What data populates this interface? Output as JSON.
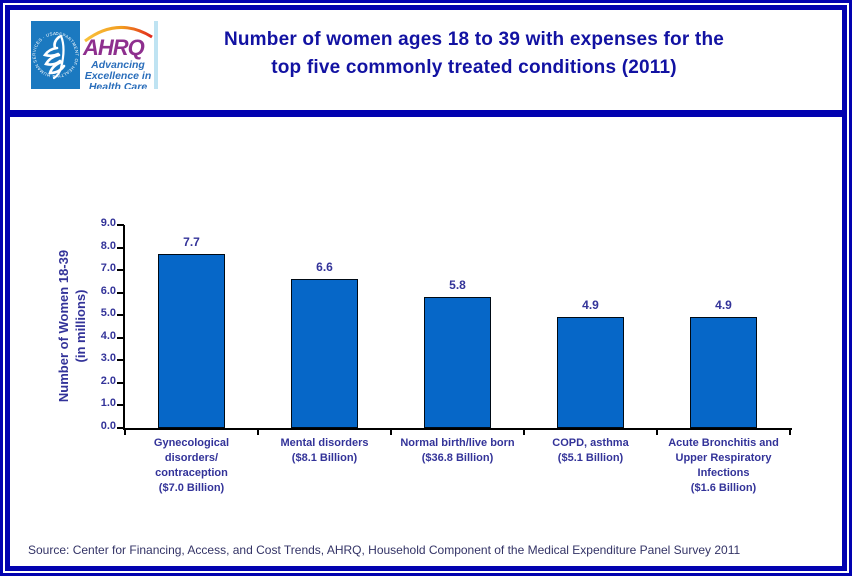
{
  "header": {
    "title_lines": [
      "Number of women ages 18 to 39 with expenses for the",
      "top five commonly treated conditions (2011)"
    ],
    "logo": {
      "hhs_seal_text": "DEPARTMENT OF HEALTH & HUMAN SERVICES · USA",
      "ahrq_name": "AHRQ",
      "ahrq_tagline_lines": [
        "Advancing",
        "Excellence in",
        "Health Care"
      ]
    }
  },
  "chart_data": {
    "type": "bar",
    "title": "Number of women ages 18 to 39 with expenses for the top five commonly treated conditions (2011)",
    "categories": [
      [
        "Gynecological",
        "disorders/",
        "contraception",
        "($7.0 Billion)"
      ],
      [
        "Mental disorders",
        "($8.1 Billion)"
      ],
      [
        "Normal birth/live born",
        "($36.8 Billion)"
      ],
      [
        "COPD, asthma",
        "($5.1 Billion)"
      ],
      [
        "Acute Bronchitis and",
        "Upper Respiratory",
        "Infections",
        "($1.6 Billion)"
      ]
    ],
    "values": [
      7.7,
      6.6,
      5.8,
      4.9,
      4.9
    ],
    "value_labels": [
      "7.7",
      "6.6",
      "5.8",
      "4.9",
      "4.9"
    ],
    "ylabel_lines": [
      "Number of Women 18-39",
      "(in millions)"
    ],
    "xlabel": "",
    "ylim": [
      0,
      9.0
    ],
    "ytick_interval": 1.0,
    "ytick_labels": [
      "0.0",
      "1.0",
      "2.0",
      "3.0",
      "4.0",
      "5.0",
      "6.0",
      "7.0",
      "8.0",
      "9.0"
    ],
    "grid": false,
    "legend": false,
    "bar_color": "#0667c8",
    "bar_border_color": "#000a14"
  },
  "footer": {
    "source": "Source: Center for Financing, Access, and Cost Trends, AHRQ, Household Component of the Medical Expenditure Panel Survey 2011"
  },
  "colors": {
    "frame_navy": "#0202b0",
    "title_text": "#1212a2",
    "chart_label_text": "#333399",
    "axis_line": "#000000",
    "source_text": "#333366",
    "hhs_blue": "#1b79c0",
    "ahrq_purple": "#8e2f8e",
    "tagline_blue": "#2a6ebb",
    "arc_yellow": "#f9c23c",
    "arc_red": "#e1261c"
  }
}
